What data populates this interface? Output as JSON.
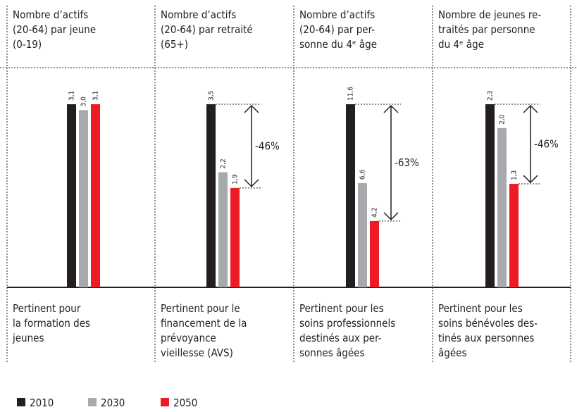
{
  "chart_data": [
    {
      "type": "bar",
      "title": [
        "Nombre d’actifs",
        "(20-64) par jeune",
        "(0-19)"
      ],
      "values": [
        3.1,
        3.0,
        3.1
      ],
      "value_labels": [
        "3,1",
        "3,0",
        "3,1"
      ],
      "ylim": [
        0,
        3.1
      ],
      "note": [
        "Pertinent pour",
        "la formation des",
        "jeunes"
      ]
    },
    {
      "type": "bar",
      "title": [
        "Nombre d’actifs",
        "(20-64) par retraité",
        "(65+)"
      ],
      "values": [
        3.5,
        2.2,
        1.9
      ],
      "value_labels": [
        "3,5",
        "2,2",
        "1,9"
      ],
      "ylim": [
        0,
        3.5
      ],
      "annotation": "-46%",
      "note": [
        "Pertinent pour le",
        "financement de la",
        "prévoyance",
        "vieillesse (AVS)"
      ]
    },
    {
      "type": "bar",
      "title": [
        "Nombre d’actifs",
        "(20-64) par  per-",
        "sonne du 4ᵉ âge"
      ],
      "values": [
        11.6,
        6.6,
        4.2
      ],
      "value_labels": [
        "11,6",
        "6,6",
        "4,2"
      ],
      "ylim": [
        0,
        11.6
      ],
      "annotation": "-63%",
      "note": [
        "Pertinent pour les",
        "soins professionnels",
        "destinés aux per-",
        "sonnes âgées"
      ]
    },
    {
      "type": "bar",
      "title": [
        "Nombre de jeunes re-",
        "traités par personne",
        "du 4ᵉ âge"
      ],
      "values": [
        2.3,
        2.0,
        1.3
      ],
      "value_labels": [
        "2,3",
        "2,0",
        "1,3"
      ],
      "ylim": [
        0,
        2.3
      ],
      "annotation": "-46%",
      "note": [
        "Pertinent pour les",
        "soins bénévoles des-",
        "tinés aux personnes",
        "âgées"
      ]
    }
  ],
  "legend": {
    "names": [
      "2010",
      "2030",
      "2050"
    ],
    "colors": [
      "#231f20",
      "#a7a9ac",
      "#ed1c24"
    ]
  }
}
